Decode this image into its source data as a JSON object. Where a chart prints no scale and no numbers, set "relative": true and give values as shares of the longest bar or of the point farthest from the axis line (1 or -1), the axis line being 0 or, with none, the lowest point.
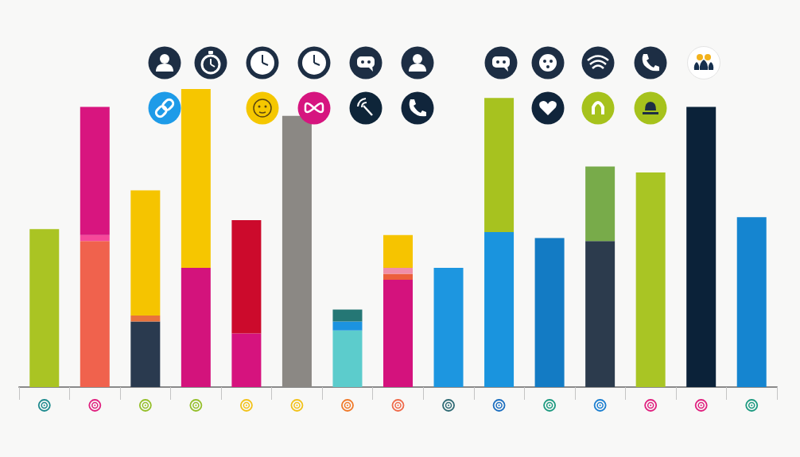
{
  "chart_data": {
    "type": "bar",
    "stacked": true,
    "relative": true,
    "categories": [
      null,
      null,
      null,
      null,
      null,
      null,
      null,
      null,
      null,
      null,
      null,
      null,
      null,
      null,
      null
    ],
    "series": [
      {
        "values": [
          0.53,
          0.49,
          0.22,
          0.4,
          0.18,
          0.91,
          0.19,
          0.36,
          0.4,
          0.52,
          0.5,
          0.49,
          0.72,
          0.94,
          0.57
        ],
        "colors": [
          "#aac423",
          "#f0624d",
          "#2a3a4f",
          "#d3137c",
          "#d6137e",
          "#8b8884",
          "#5ccccc",
          "#d4127d",
          "#1d96e0",
          "#1a94de",
          "#137bc4",
          "#2c3b4d",
          "#a9c524",
          "#0b2239",
          "#1585d0"
        ]
      },
      {
        "values": [
          null,
          0.02,
          0.02,
          0.6,
          0.38,
          null,
          0.03,
          0.02,
          null,
          0.45,
          null,
          0.25,
          null,
          null,
          null
        ],
        "colors": [
          null,
          "#f6489a",
          "#e8723c",
          "#f6c600",
          "#cc0a2c",
          null,
          "#1c93e0",
          "#ec5f3c",
          null,
          "#a7c21f",
          null,
          "#78ab4a",
          null,
          null,
          null
        ]
      },
      {
        "values": [
          null,
          0.43,
          0.42,
          null,
          null,
          null,
          0.04,
          0.02,
          null,
          null,
          null,
          null,
          null,
          null,
          null
        ],
        "colors": [
          null,
          "#d8157f",
          "#f5c400",
          null,
          null,
          null,
          "#257775",
          "#f08ea8",
          null,
          null,
          null,
          null,
          null,
          null,
          null
        ]
      },
      {
        "values": [
          null,
          null,
          null,
          null,
          null,
          null,
          null,
          0.11,
          null,
          null,
          null,
          null,
          null,
          null,
          null
        ],
        "colors": [
          null,
          null,
          null,
          null,
          null,
          null,
          null,
          "#f6c400",
          null,
          null,
          null,
          null,
          null,
          null,
          null
        ]
      }
    ]
  }
}
